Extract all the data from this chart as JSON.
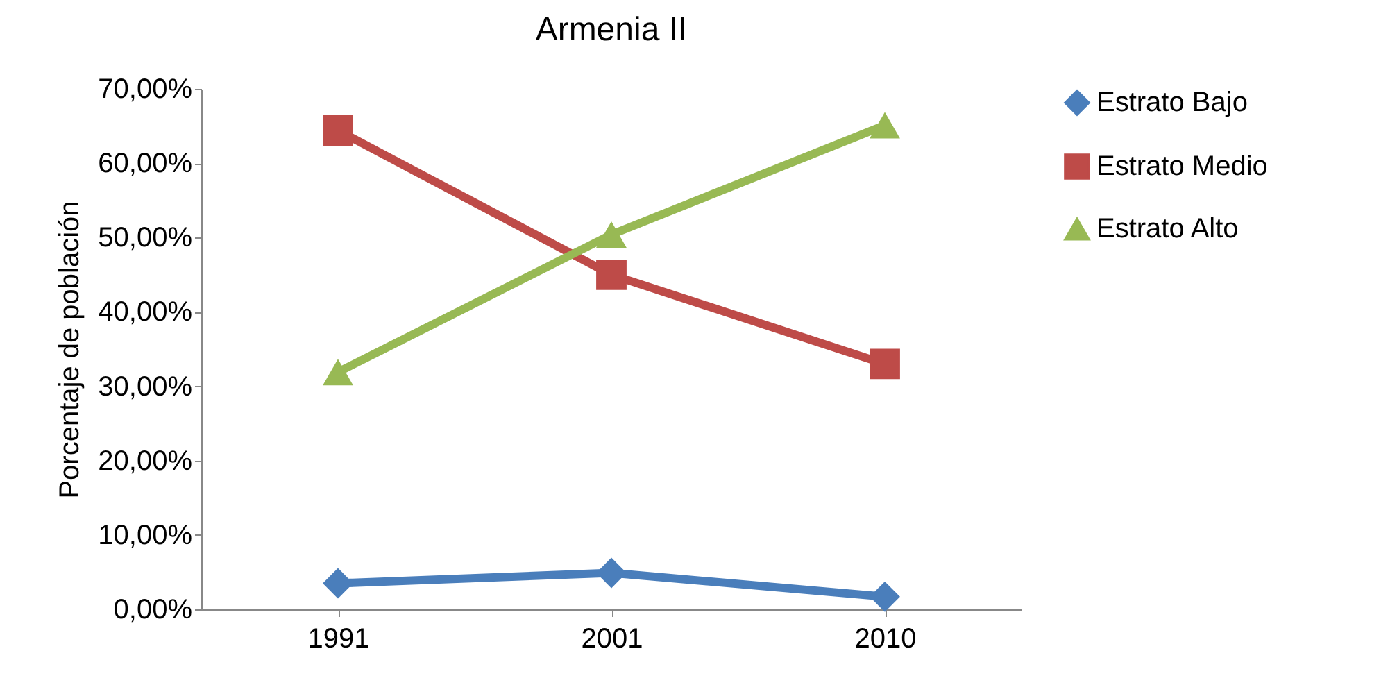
{
  "chart_data": {
    "type": "line",
    "title": "Armenia II",
    "ylabel": "Porcentaje de población",
    "categories": [
      "1991",
      "2001",
      "2010"
    ],
    "series": [
      {
        "name": "Estrato Bajo",
        "color": "#4a7ebb",
        "marker": "diamond",
        "values": [
          3.5,
          4.9,
          1.7
        ]
      },
      {
        "name": "Estrato Medio",
        "color": "#be4b48",
        "marker": "square",
        "values": [
          64.4,
          45.0,
          33.0
        ]
      },
      {
        "name": "Estrato Alto",
        "color": "#98b954",
        "marker": "triangle",
        "values": [
          31.9,
          50.4,
          65.1
        ]
      }
    ],
    "ylim": [
      0,
      70
    ],
    "yticks": [
      {
        "value": 0,
        "label": "0,00%"
      },
      {
        "value": 10,
        "label": "10,00%"
      },
      {
        "value": 20,
        "label": "20,00%"
      },
      {
        "value": 30,
        "label": "30,00%"
      },
      {
        "value": 40,
        "label": "40,00%"
      },
      {
        "value": 50,
        "label": "50,00%"
      },
      {
        "value": 60,
        "label": "60,00%"
      },
      {
        "value": 70,
        "label": "70,00%"
      }
    ],
    "grid": false,
    "legend": "right",
    "line_style": "solid"
  }
}
